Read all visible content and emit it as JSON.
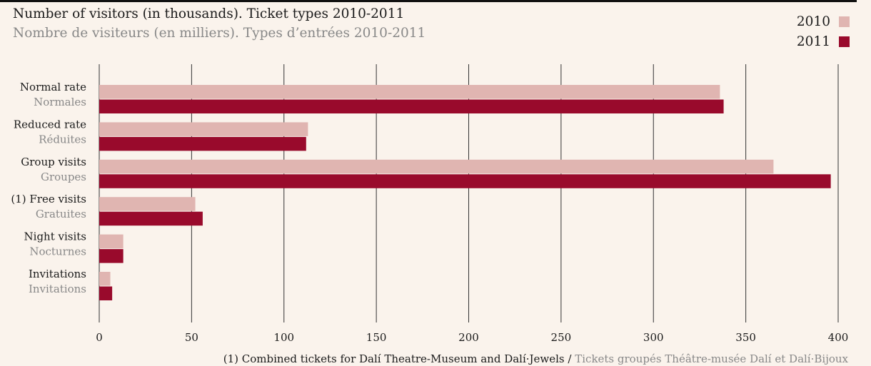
{
  "header": {
    "title": "Number of visitors (in thousands). Ticket types 2010-2011",
    "subtitle": "Nombre de visiteurs (en milliers). Types d’entrées 2010-2011"
  },
  "footnote": {
    "en": "(1) Combined tickets for Dalí Theatre-Museum and Dalí·Jewels",
    "separator": " / ",
    "fr": "Tickets groupés Théâtre-musée Dalí et Dalí·Bijoux"
  },
  "colors": {
    "2010": "#e0b5b1",
    "2011": "#990a2c",
    "gridline": "#333333",
    "background": "#faf3ec"
  },
  "chart_data": {
    "type": "bar",
    "orientation": "horizontal",
    "categories": [
      "Normal rate",
      "Reduced rate",
      "Group visits",
      "(1) Free visits",
      "Night visits",
      "Invitations"
    ],
    "categories_fr": [
      "Normales",
      "Réduites",
      "Groupes",
      "Gratuites",
      "Nocturnes",
      "Invitations"
    ],
    "series": [
      {
        "name": "2010",
        "values": [
          336,
          113,
          365,
          52,
          13,
          6
        ]
      },
      {
        "name": "2011",
        "values": [
          338,
          112,
          396,
          56,
          13,
          7
        ]
      }
    ],
    "xlim": [
      0,
      400
    ],
    "xticks": [
      "0",
      "50",
      "100",
      "150",
      "200",
      "250",
      "300",
      "350",
      "400"
    ],
    "grid": true,
    "legend": "top-right"
  }
}
